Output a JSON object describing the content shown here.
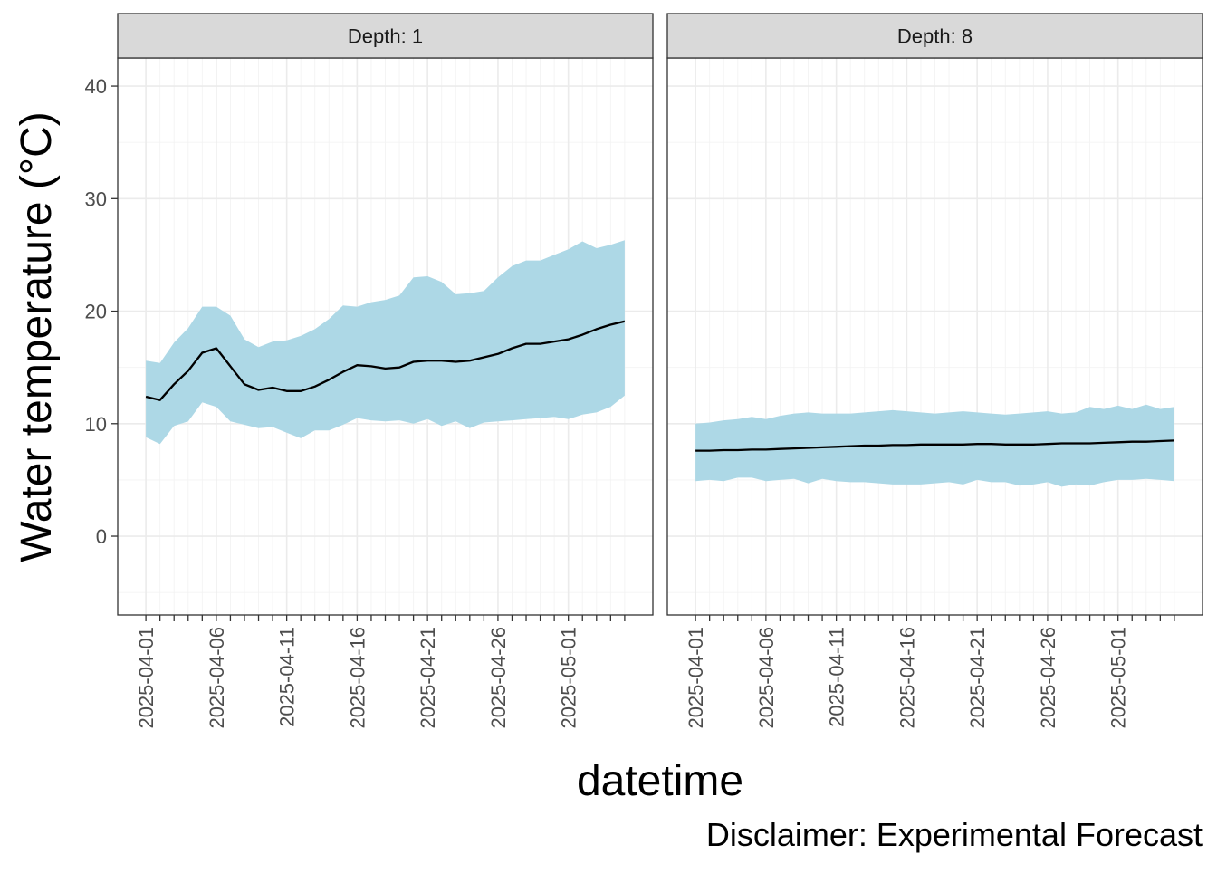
{
  "chart_data": {
    "type": "area",
    "ylabel": "Water temperature (°C)",
    "xlabel": "datetime",
    "caption": "Disclaimer: Experimental Forecast",
    "ylim": [
      -7,
      42.5
    ],
    "yticks": [
      0,
      10,
      20,
      30,
      40
    ],
    "xlim": [
      "2025-03-30",
      "2025-05-07"
    ],
    "xtick_labels": [
      "2025-04-01",
      "2025-04-06",
      "2025-04-11",
      "2025-04-16",
      "2025-04-21",
      "2025-04-26",
      "2025-05-01"
    ],
    "grid": true,
    "dates": [
      "2025-04-01",
      "2025-04-02",
      "2025-04-03",
      "2025-04-04",
      "2025-04-05",
      "2025-04-06",
      "2025-04-07",
      "2025-04-08",
      "2025-04-09",
      "2025-04-10",
      "2025-04-11",
      "2025-04-12",
      "2025-04-13",
      "2025-04-14",
      "2025-04-15",
      "2025-04-16",
      "2025-04-17",
      "2025-04-18",
      "2025-04-19",
      "2025-04-20",
      "2025-04-21",
      "2025-04-22",
      "2025-04-23",
      "2025-04-24",
      "2025-04-25",
      "2025-04-26",
      "2025-04-27",
      "2025-04-28",
      "2025-04-29",
      "2025-04-30",
      "2025-05-01",
      "2025-05-02",
      "2025-05-03",
      "2025-05-04",
      "2025-05-05"
    ],
    "panels": [
      {
        "strip": "Depth: 1",
        "mean": [
          12.4,
          12.1,
          13.5,
          14.7,
          16.3,
          16.7,
          15.1,
          13.5,
          13.0,
          13.2,
          12.9,
          12.9,
          13.3,
          13.9,
          14.6,
          15.2,
          15.1,
          14.9,
          15.0,
          15.5,
          15.6,
          15.6,
          15.5,
          15.6,
          15.9,
          16.2,
          16.7,
          17.1,
          17.1,
          17.3,
          17.5,
          17.9,
          18.4,
          18.8,
          19.1
        ],
        "upper": [
          15.6,
          15.4,
          17.2,
          18.5,
          20.4,
          20.4,
          19.6,
          17.5,
          16.8,
          17.3,
          17.4,
          17.8,
          18.4,
          19.3,
          20.5,
          20.4,
          20.8,
          21.0,
          21.4,
          23.0,
          23.1,
          22.6,
          21.5,
          21.6,
          21.8,
          23.0,
          24.0,
          24.5,
          24.5,
          25.0,
          25.5,
          26.2,
          25.6,
          25.9,
          26.3
        ],
        "lower": [
          8.8,
          8.2,
          9.8,
          10.2,
          11.9,
          11.5,
          10.2,
          9.9,
          9.6,
          9.7,
          9.2,
          8.7,
          9.4,
          9.4,
          9.9,
          10.5,
          10.3,
          10.2,
          10.3,
          10.0,
          10.4,
          9.8,
          10.2,
          9.6,
          10.1,
          10.2,
          10.3,
          10.4,
          10.5,
          10.6,
          10.4,
          10.8,
          11.0,
          11.5,
          12.5
        ]
      },
      {
        "strip": "Depth: 8",
        "mean": [
          7.6,
          7.6,
          7.65,
          7.65,
          7.7,
          7.7,
          7.75,
          7.8,
          7.85,
          7.9,
          7.95,
          8.0,
          8.05,
          8.05,
          8.1,
          8.1,
          8.15,
          8.15,
          8.15,
          8.15,
          8.2,
          8.2,
          8.15,
          8.15,
          8.15,
          8.2,
          8.25,
          8.25,
          8.25,
          8.3,
          8.35,
          8.4,
          8.4,
          8.45,
          8.5
        ],
        "upper": [
          10.0,
          10.1,
          10.3,
          10.4,
          10.6,
          10.4,
          10.7,
          10.9,
          11.0,
          10.9,
          10.9,
          10.9,
          11.0,
          11.1,
          11.2,
          11.1,
          11.0,
          10.9,
          11.0,
          11.1,
          11.0,
          10.9,
          10.8,
          10.9,
          11.0,
          11.1,
          10.9,
          11.0,
          11.5,
          11.3,
          11.6,
          11.3,
          11.7,
          11.3,
          11.5
        ],
        "lower": [
          4.9,
          5.0,
          4.9,
          5.2,
          5.2,
          4.9,
          5.0,
          5.1,
          4.7,
          5.1,
          4.9,
          4.8,
          4.8,
          4.7,
          4.6,
          4.6,
          4.6,
          4.7,
          4.8,
          4.6,
          5.0,
          4.8,
          4.8,
          4.5,
          4.6,
          4.8,
          4.4,
          4.6,
          4.5,
          4.8,
          5.0,
          5.0,
          5.1,
          5.0,
          4.9
        ]
      }
    ]
  }
}
